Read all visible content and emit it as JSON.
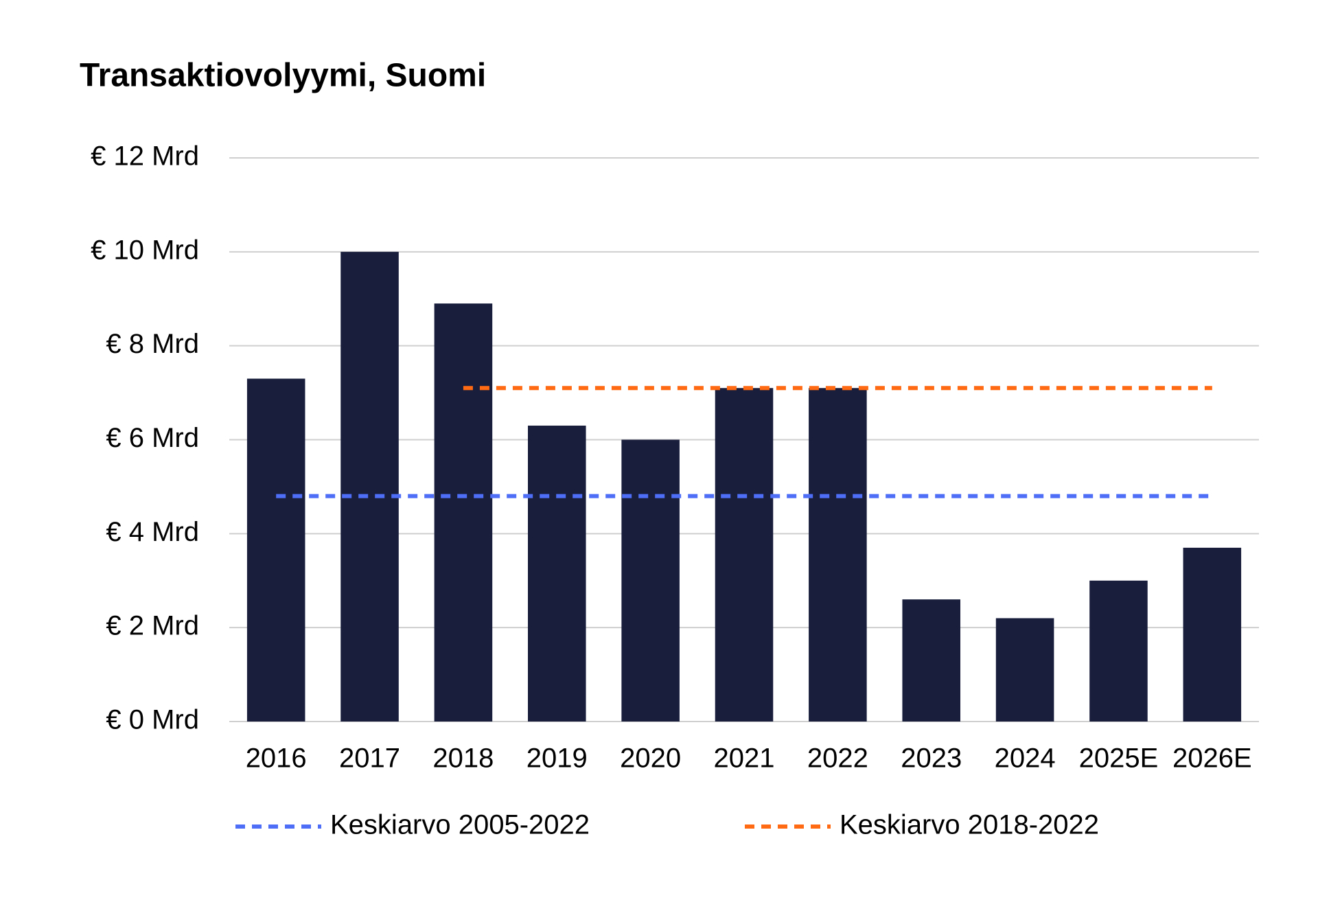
{
  "chart_data": {
    "type": "bar",
    "title": "Transaktiovolyymi, Suomi",
    "categories": [
      "2016",
      "2017",
      "2018",
      "2019",
      "2020",
      "2021",
      "2022",
      "2023",
      "2024",
      "2025E",
      "2026E"
    ],
    "series": [
      {
        "type": "bar",
        "color": "#181e3c",
        "values": [
          7.3,
          10.0,
          8.9,
          6.3,
          6.0,
          7.1,
          7.1,
          2.6,
          2.2,
          3.0,
          3.7
        ]
      },
      {
        "type": "line",
        "name": "Keskiarvo 2005-2022",
        "color": "#4f6ef7",
        "values": [
          4.8,
          4.8,
          4.8,
          4.8,
          4.8,
          4.8,
          4.8,
          4.8,
          4.8,
          4.8,
          4.8
        ]
      },
      {
        "type": "line",
        "name": "Keskiarvo 2018-2022",
        "color": "#ff6a13",
        "values": [
          null,
          null,
          7.1,
          7.1,
          7.1,
          7.1,
          7.1,
          7.1,
          7.1,
          7.1,
          7.1
        ]
      }
    ],
    "ylim": [
      0,
      12
    ],
    "yticks": [
      {
        "value": 0,
        "label": "€ 0 Mrd"
      },
      {
        "value": 2,
        "label": "€ 2 Mrd"
      },
      {
        "value": 4,
        "label": "€ 4 Mrd"
      },
      {
        "value": 6,
        "label": "€ 6 Mrd"
      },
      {
        "value": 8,
        "label": "€ 8 Mrd"
      },
      {
        "value": 10,
        "label": "€ 10 Mrd"
      },
      {
        "value": 12,
        "label": "€ 12 Mrd"
      }
    ],
    "grid": true,
    "legend": "bottom"
  }
}
